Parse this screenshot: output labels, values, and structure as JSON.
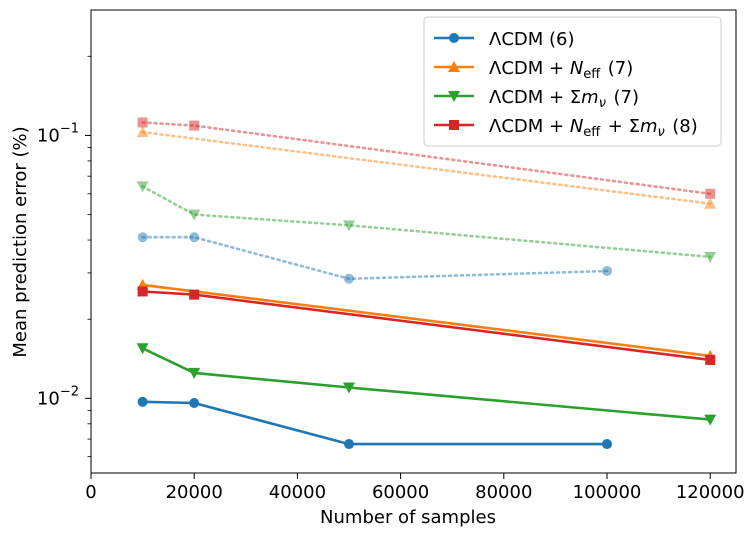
{
  "chart_data": {
    "type": "line",
    "xlabel": "Number of samples",
    "ylabel": "Mean prediction error (%)",
    "xlim": [
      0,
      125000
    ],
    "ylim": [
      0.0052,
      0.3
    ],
    "yscale": "log",
    "grid": false,
    "legend_position": "top-right",
    "x_ticks": [
      0,
      20000,
      40000,
      60000,
      80000,
      100000,
      120000
    ],
    "x_tick_labels": [
      "0",
      "20000",
      "40000",
      "60000",
      "80000",
      "100000",
      "120000"
    ],
    "y_major_ticks": [
      0.01,
      0.1
    ],
    "y_minor_ticks": [
      0.006,
      0.007,
      0.008,
      0.009,
      0.02,
      0.03,
      0.04,
      0.05,
      0.06,
      0.07,
      0.08,
      0.09,
      0.2
    ],
    "y_tick_labels": {
      "low": {
        "base": "10",
        "exp": "−2"
      },
      "high": {
        "base": "10",
        "exp": "−1"
      }
    },
    "series": [
      {
        "name": "ΛCDM (6)",
        "color": "#1f77b4",
        "marker": "circle",
        "solid": {
          "x": [
            10000,
            20000,
            50000,
            100000
          ],
          "y": [
            0.0097,
            0.0096,
            0.0067,
            0.0067
          ]
        },
        "dotted": {
          "x": [
            10000,
            20000,
            50000,
            100000
          ],
          "y": [
            0.041,
            0.041,
            0.0285,
            0.0305
          ]
        }
      },
      {
        "name": "ΛCDM + N_eff (7)",
        "color": "#ff7f0e",
        "marker": "triangle-up",
        "solid": {
          "x": [
            10000,
            120000
          ],
          "y": [
            0.027,
            0.0145
          ]
        },
        "dotted": {
          "x": [
            10000,
            120000
          ],
          "y": [
            0.103,
            0.055
          ]
        }
      },
      {
        "name": "ΛCDM + Σm_ν (7)",
        "color": "#2ca02c",
        "marker": "triangle-down",
        "solid": {
          "x": [
            10000,
            20000,
            50000,
            120000
          ],
          "y": [
            0.0155,
            0.0125,
            0.011,
            0.0083
          ]
        },
        "dotted": {
          "x": [
            10000,
            20000,
            50000,
            120000
          ],
          "y": [
            0.064,
            0.05,
            0.0455,
            0.0345
          ]
        }
      },
      {
        "name": "ΛCDM + N_eff + Σm_ν (8)",
        "color": "#d62728",
        "marker": "square",
        "solid": {
          "x": [
            10000,
            20000,
            120000
          ],
          "y": [
            0.0255,
            0.0248,
            0.014
          ]
        },
        "dotted": {
          "x": [
            10000,
            20000,
            120000
          ],
          "y": [
            0.112,
            0.109,
            0.06
          ]
        }
      }
    ],
    "legend": {
      "entries": [
        {
          "base": "ΛCDM",
          "suffix": " (6)"
        },
        {
          "base": "ΛCDM + ",
          "N": "N",
          "Nsub": "eff",
          "suffix": " (7)"
        },
        {
          "base": "ΛCDM + Σ",
          "m": "m",
          "msub": "ν",
          "suffix": " (7)"
        },
        {
          "base": "ΛCDM + ",
          "N": "N",
          "Nsub": "eff",
          "mid": " + Σ",
          "m": "m",
          "msub": "ν",
          "suffix": " (8)"
        }
      ]
    }
  }
}
